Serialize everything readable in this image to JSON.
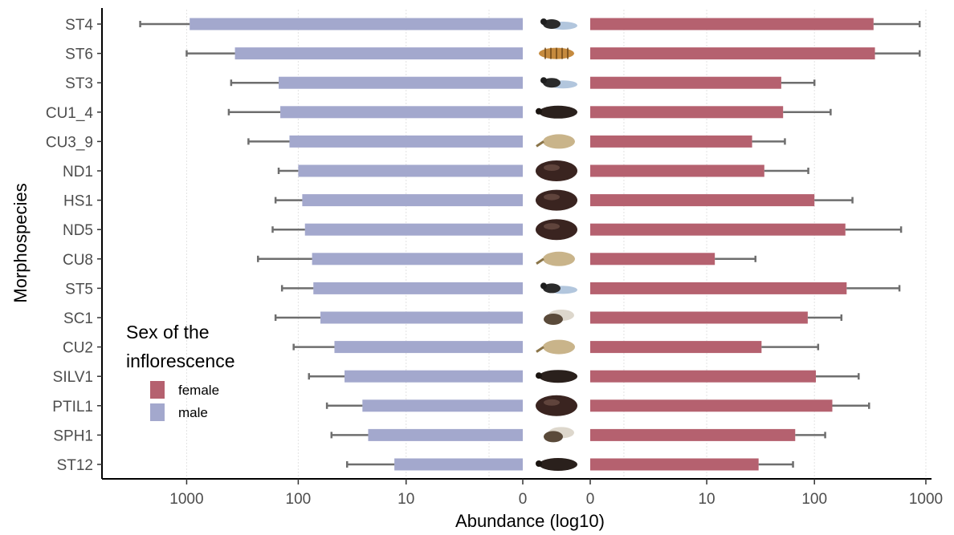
{
  "chart_data": {
    "type": "bar",
    "orientation": "horizontal-mirrored",
    "xlabel": "Abundance (log10)",
    "ylabel": "Morphospecies",
    "x_scale": "log10",
    "x_ticks": [
      "1000",
      "100",
      "10",
      "0",
      "0",
      "10",
      "100",
      "1000"
    ],
    "xlim_male": [
      0,
      1000
    ],
    "xlim_female": [
      0,
      1000
    ],
    "grid": "vertical-minor",
    "legend": {
      "title": "Sex of the inflorescence",
      "title_lines": [
        "Sex of the",
        "inflorescence"
      ],
      "placement": "bottom-left",
      "entries": [
        {
          "label": "female",
          "color": "#b5616f"
        },
        {
          "label": "male",
          "color": "#a3a8cd"
        }
      ]
    },
    "categories": [
      "ST4",
      "ST6",
      "ST3",
      "CU1_4",
      "CU3_9",
      "ND1",
      "HS1",
      "ND5",
      "CU8",
      "ST5",
      "SC1",
      "CU2",
      "SILV1",
      "PTIL1",
      "SPH1",
      "ST12"
    ],
    "insect_icons": [
      "wasp-icon",
      "larva-icon",
      "wasp-icon",
      "beetle-icon",
      "weevil-icon",
      "round-beetle-icon",
      "round-beetle-icon",
      "round-beetle-icon",
      "weevil-icon",
      "wasp-icon",
      "fly-icon",
      "weevil-icon",
      "beetle-icon",
      "round-beetle-icon",
      "fly-icon",
      "beetle-icon"
    ],
    "series": [
      {
        "name": "male",
        "color": "#a3a8cd",
        "values": [
          940,
          370,
          150,
          145,
          120,
          100,
          92,
          87,
          75,
          73,
          63,
          47,
          38,
          26,
          23,
          13
        ],
        "error_upper": [
          2600,
          1000,
          400,
          420,
          280,
          150,
          160,
          170,
          230,
          140,
          160,
          110,
          80,
          55,
          50,
          36
        ]
      },
      {
        "name": "female",
        "color": "#b5616f",
        "values": [
          340,
          350,
          50,
          52,
          27,
          35,
          100,
          190,
          12,
          195,
          87,
          33,
          103,
          145,
          67,
          31
        ],
        "error_upper": [
          880,
          880,
          100,
          140,
          54,
          88,
          220,
          600,
          29,
          580,
          175,
          108,
          250,
          310,
          125,
          64
        ]
      }
    ]
  }
}
